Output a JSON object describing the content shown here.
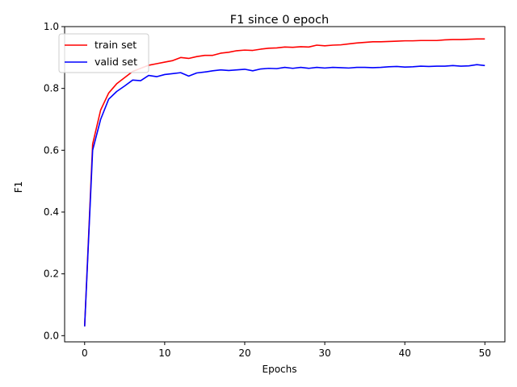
{
  "chart_data": {
    "type": "line",
    "title": "F1 since 0 epoch",
    "xlabel": "Epochs",
    "ylabel": "F1",
    "xlim": [
      -2.5,
      52.5
    ],
    "ylim": [
      -0.02,
      1.0
    ],
    "xticks": [
      0,
      10,
      20,
      30,
      40,
      50
    ],
    "xtick_labels": [
      "0",
      "10",
      "20",
      "30",
      "40",
      "50"
    ],
    "yticks": [
      0.0,
      0.2,
      0.4,
      0.6,
      0.8,
      1.0
    ],
    "ytick_labels": [
      "0.0",
      "0.2",
      "0.4",
      "0.6",
      "0.8",
      "1.0"
    ],
    "grid": false,
    "legend_position": "top-left",
    "x": [
      0,
      1,
      2,
      3,
      4,
      5,
      6,
      7,
      8,
      9,
      10,
      11,
      12,
      13,
      14,
      15,
      16,
      17,
      18,
      19,
      20,
      21,
      22,
      23,
      24,
      25,
      26,
      27,
      28,
      29,
      30,
      31,
      32,
      33,
      34,
      35,
      36,
      37,
      38,
      39,
      40,
      41,
      42,
      43,
      44,
      45,
      46,
      47,
      48,
      49,
      50
    ],
    "series": [
      {
        "name": "train set",
        "color": "#ff0000",
        "values": [
          0.03,
          0.62,
          0.73,
          0.785,
          0.815,
          0.835,
          0.855,
          0.865,
          0.875,
          0.88,
          0.885,
          0.89,
          0.9,
          0.897,
          0.903,
          0.907,
          0.907,
          0.914,
          0.917,
          0.922,
          0.924,
          0.923,
          0.927,
          0.93,
          0.931,
          0.934,
          0.933,
          0.935,
          0.934,
          0.94,
          0.938,
          0.94,
          0.941,
          0.944,
          0.947,
          0.949,
          0.951,
          0.951,
          0.952,
          0.953,
          0.954,
          0.954,
          0.955,
          0.955,
          0.955,
          0.957,
          0.958,
          0.958,
          0.959,
          0.96,
          0.96
        ]
      },
      {
        "name": "valid set",
        "color": "#0000ff",
        "values": [
          0.03,
          0.6,
          0.7,
          0.765,
          0.79,
          0.808,
          0.827,
          0.825,
          0.842,
          0.838,
          0.845,
          0.848,
          0.851,
          0.84,
          0.85,
          0.853,
          0.857,
          0.86,
          0.858,
          0.86,
          0.862,
          0.857,
          0.863,
          0.865,
          0.864,
          0.868,
          0.865,
          0.868,
          0.865,
          0.868,
          0.866,
          0.868,
          0.867,
          0.866,
          0.868,
          0.868,
          0.867,
          0.868,
          0.87,
          0.871,
          0.869,
          0.87,
          0.872,
          0.871,
          0.872,
          0.872,
          0.874,
          0.872,
          0.873,
          0.877,
          0.874
        ]
      }
    ]
  }
}
